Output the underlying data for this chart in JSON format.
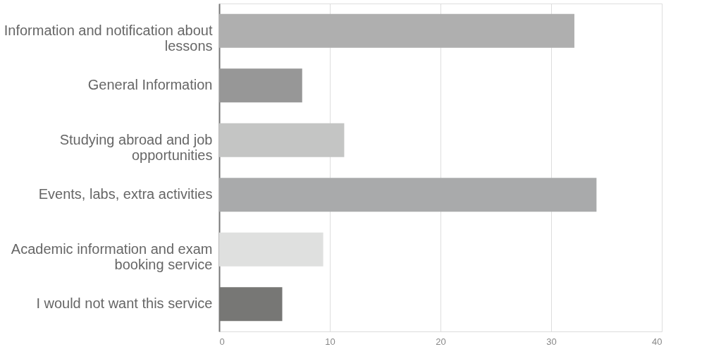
{
  "chart_data": {
    "type": "bar",
    "orientation": "horizontal",
    "categories": [
      "Information and notification about lessons",
      "General Information",
      "Studying abroad and job opportunities",
      "Events, labs, extra activities",
      "Academic information and exam booking service",
      "I would not want this service"
    ],
    "values": [
      32.1,
      7.5,
      11.3,
      34.1,
      9.4,
      5.7
    ],
    "colors": [
      "#afafaf",
      "#979797",
      "#c4c5c4",
      "#a9aaab",
      "#dfe0df",
      "#777775"
    ],
    "xlim": [
      0,
      40
    ],
    "xticks": [
      0,
      10,
      20,
      30,
      40
    ],
    "grid": "x"
  }
}
